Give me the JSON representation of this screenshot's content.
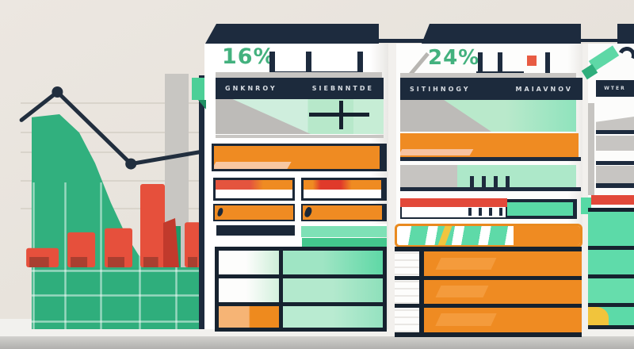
{
  "palette": {
    "green": "#2fae7c",
    "mint": "#5edaa8",
    "navy": "#1d2b3e",
    "orange": "#ef8b22",
    "red": "#e2493a",
    "yellow": "#f1c43c",
    "beige": "#e9e4dd"
  },
  "panels": {
    "middle": {
      "stat": "16%",
      "header_words": [
        "GNKNROY",
        "SIEBNNTDE"
      ]
    },
    "right": {
      "stat": "24%",
      "header_words": [
        "SITIHNOGY",
        "MAIAVNOV"
      ]
    },
    "far_right": {
      "header_words": [
        "WTER"
      ]
    }
  },
  "chart_data": {
    "type": "combo",
    "title": "",
    "xlabel": "",
    "ylabel": "",
    "grid": true,
    "legend": false,
    "note": "Decorative infographic chart; values estimated from pixel geometry, normalized 0-100.",
    "series": [
      {
        "name": "green-area",
        "type": "area",
        "x_frac": [
          0.084,
          0.231,
          0.336,
          0.42,
          0.504,
          0.58,
          0.651,
          0.723
        ],
        "values": [
          98,
          100,
          88,
          68,
          42,
          22,
          8,
          0
        ]
      },
      {
        "name": "red-bars",
        "type": "bar",
        "x_frac": [
          0.141,
          0.347,
          0.544,
          0.725,
          0.937
        ],
        "values": [
          23,
          42,
          47,
          100,
          54
        ]
      },
      {
        "name": "trend-line",
        "type": "line",
        "x_frac": [
          0.03,
          0.22,
          0.61,
          0.99
        ],
        "values": [
          84,
          100,
          59,
          66
        ],
        "marker_indices": [
          1,
          2
        ]
      }
    ]
  }
}
